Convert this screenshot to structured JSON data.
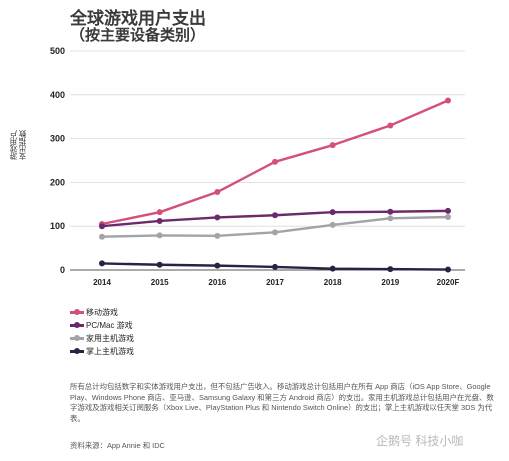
{
  "title": "全球游戏用户支出",
  "subtitle": "（按主要设备类别）",
  "footnote": "所有总计均包括数字和实体游戏用户支出，但不包括广告收入。移动游戏总计包括用户在所有 App 商店（iOS App Store、Google Play、Windows Phone 商店、亚马逊、Samsung Galaxy 和第三方 Android 商店）的支出。家用主机游戏总计包括用户在光盘、数字游戏及游戏相关订阅服务（Xbox Live、PlayStation Plus 和 Nintendo Switch Online）的支出；掌上主机游戏以任天堂 3DS 为代表。",
  "source": "资料来源：App Annie 和 IDC",
  "watermark": "企鹅号 科技小咖",
  "chart_data": {
    "type": "line",
    "ylabel": "游戏用户支出指数",
    "ylabel_lines": [
      "游戏用户",
      "支出指数"
    ],
    "categories": [
      "2014",
      "2015",
      "2016",
      "2017",
      "2018",
      "2019",
      "2020F"
    ],
    "ylim": [
      0,
      500
    ],
    "yticks": [
      "0",
      "100",
      "200",
      "300",
      "400",
      "500"
    ],
    "grid": true,
    "legend_position": "bottom-left",
    "series": [
      {
        "name": "移动游戏",
        "color": "#d4507a",
        "values": [
          105,
          132,
          178,
          247,
          285,
          330,
          387
        ]
      },
      {
        "name": "PC/Mac 游戏",
        "color": "#6b2a6b",
        "values": [
          100,
          112,
          120,
          125,
          132,
          133,
          135
        ]
      },
      {
        "name": "家用主机游戏",
        "color": "#a3a3a8",
        "values": [
          76,
          79,
          78,
          86,
          103,
          118,
          121
        ]
      },
      {
        "name": "掌上主机游戏",
        "color": "#2a2244",
        "values": [
          15,
          12,
          10,
          7,
          3,
          2,
          1
        ]
      }
    ]
  }
}
